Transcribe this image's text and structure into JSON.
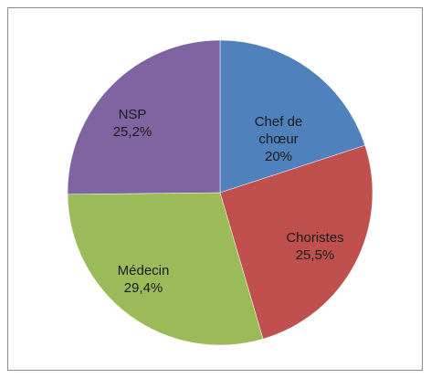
{
  "chart_data": {
    "type": "pie",
    "categories": [
      "Chef de chœur",
      "Choristes",
      "Médecin",
      "NSP"
    ],
    "values": [
      20,
      25.5,
      29.4,
      25.2
    ],
    "value_labels": [
      "20%",
      "25,5%",
      "29,4%",
      "25,2%"
    ],
    "colors": [
      "#4f81bd",
      "#c0504d",
      "#9bbb59",
      "#8064a2"
    ]
  }
}
